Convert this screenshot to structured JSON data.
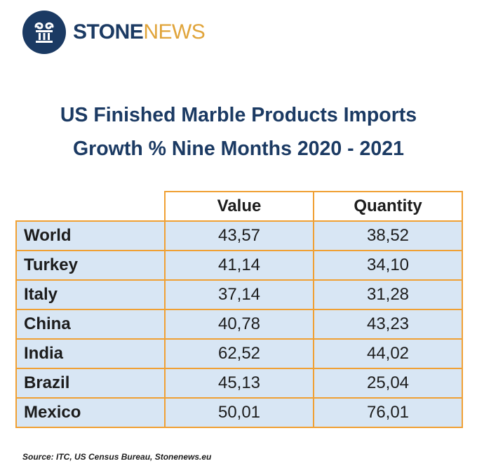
{
  "brand": {
    "name_bold": "STONE",
    "name_light": "NEWS",
    "logo_icon": "stone-column-icon",
    "colors": {
      "navy": "#1b3a63",
      "gold": "#e0a43a",
      "table_border": "#f0a033",
      "row_fill": "#d8e6f4"
    }
  },
  "title_lines": [
    "US Finished Marble Products Imports",
    "Growth % Nine Months 2020 - 2021"
  ],
  "source": "Source: ITC, US Census Bureau, Stonenews.eu",
  "chart_data": {
    "type": "table",
    "title": "US Finished Marble Products Imports Growth % Nine Months 2020 - 2021",
    "columns": [
      "Value",
      "Quantity"
    ],
    "rows": [
      {
        "label": "World",
        "values": [
          "43,57",
          "38,52"
        ]
      },
      {
        "label": "Turkey",
        "values": [
          "41,14",
          "34,10"
        ]
      },
      {
        "label": "Italy",
        "values": [
          "37,14",
          "31,28"
        ]
      },
      {
        "label": "China",
        "values": [
          "40,78",
          "43,23"
        ]
      },
      {
        "label": "India",
        "values": [
          "62,52",
          "44,02"
        ]
      },
      {
        "label": "Brazil",
        "values": [
          "45,13",
          "25,04"
        ]
      },
      {
        "label": "Mexico",
        "values": [
          "50,01",
          "76,01"
        ]
      }
    ]
  }
}
